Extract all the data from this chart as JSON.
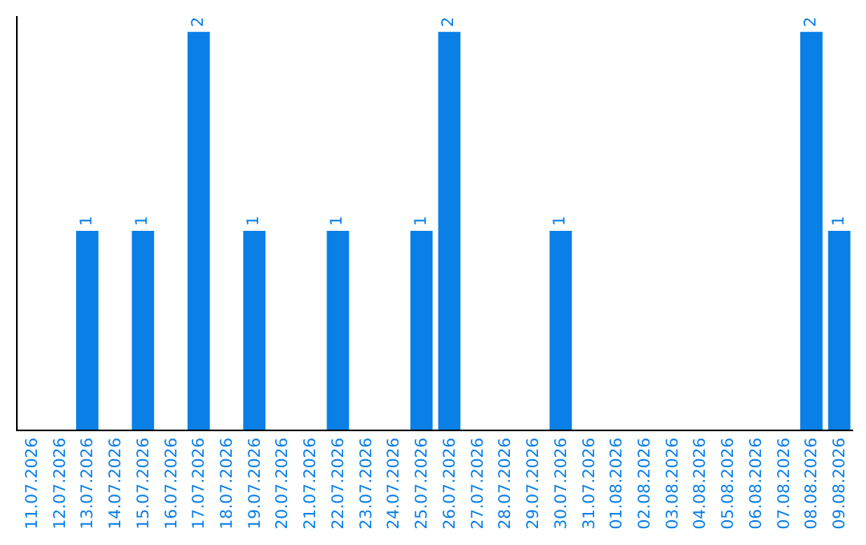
{
  "chart_data": {
    "type": "bar",
    "categories": [
      "11.07.2026",
      "12.07.2026",
      "13.07.2026",
      "14.07.2026",
      "15.07.2026",
      "16.07.2026",
      "17.07.2026",
      "18.07.2026",
      "19.07.2026",
      "20.07.2026",
      "21.07.2026",
      "22.07.2026",
      "23.07.2026",
      "24.07.2026",
      "25.07.2026",
      "26.07.2026",
      "27.07.2026",
      "28.07.2026",
      "29.07.2026",
      "30.07.2026",
      "31.07.2026",
      "01.08.2026",
      "02.08.2026",
      "03.08.2026",
      "04.08.2026",
      "05.08.2026",
      "06.08.2026",
      "07.08.2026",
      "08.08.2026",
      "09.08.2026"
    ],
    "values": [
      0,
      0,
      1,
      0,
      1,
      0,
      2,
      0,
      1,
      0,
      0,
      1,
      0,
      0,
      1,
      2,
      0,
      0,
      0,
      1,
      0,
      0,
      0,
      0,
      0,
      0,
      0,
      0,
      2,
      1
    ],
    "value_labels": [
      null,
      null,
      "1",
      null,
      "1",
      null,
      "2",
      null,
      "1",
      null,
      null,
      "1",
      null,
      null,
      "1",
      "2",
      null,
      null,
      null,
      "1",
      null,
      null,
      null,
      null,
      null,
      null,
      null,
      null,
      "2",
      "1"
    ],
    "color": "#0a7fe6",
    "grid": false,
    "legend": false
  }
}
